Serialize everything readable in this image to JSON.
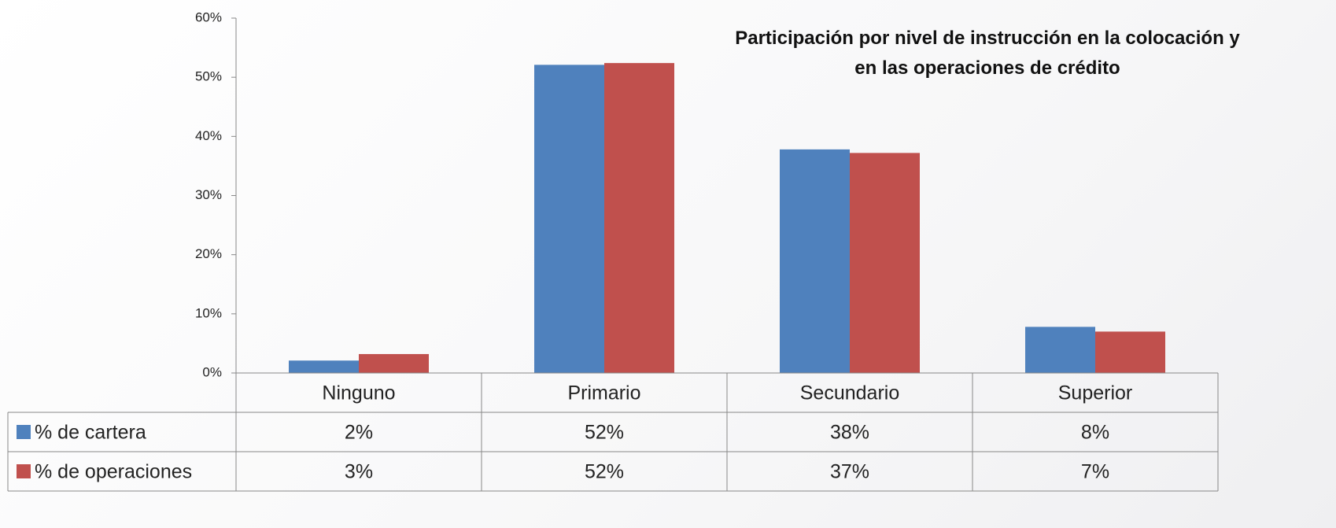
{
  "chart_data": {
    "type": "bar",
    "title": "Participación por nivel de instrucción en la colocación y en las operaciones de crédito",
    "categories": [
      "Ninguno",
      "Primario",
      "Secundario",
      "Superior"
    ],
    "series": [
      {
        "name": "% de cartera",
        "color": "#4f81bd",
        "values": [
          2.1,
          52.1,
          37.8,
          7.8
        ],
        "value_labels": [
          "2%",
          "52%",
          "38%",
          "8%"
        ]
      },
      {
        "name": "% de operaciones",
        "color": "#c0504d",
        "values": [
          3.2,
          52.4,
          37.2,
          7.0
        ],
        "value_labels": [
          "3%",
          "52%",
          "37%",
          "7%"
        ]
      }
    ],
    "ylim": [
      0,
      60
    ],
    "yticks": [
      {
        "value": 0,
        "label": "0%"
      },
      {
        "value": 10,
        "label": "10%"
      },
      {
        "value": 20,
        "label": "20%"
      },
      {
        "value": 30,
        "label": "30%"
      },
      {
        "value": 40,
        "label": "40%"
      },
      {
        "value": 50,
        "label": "50%"
      },
      {
        "value": 60,
        "label": "60%"
      }
    ],
    "grid": false
  }
}
